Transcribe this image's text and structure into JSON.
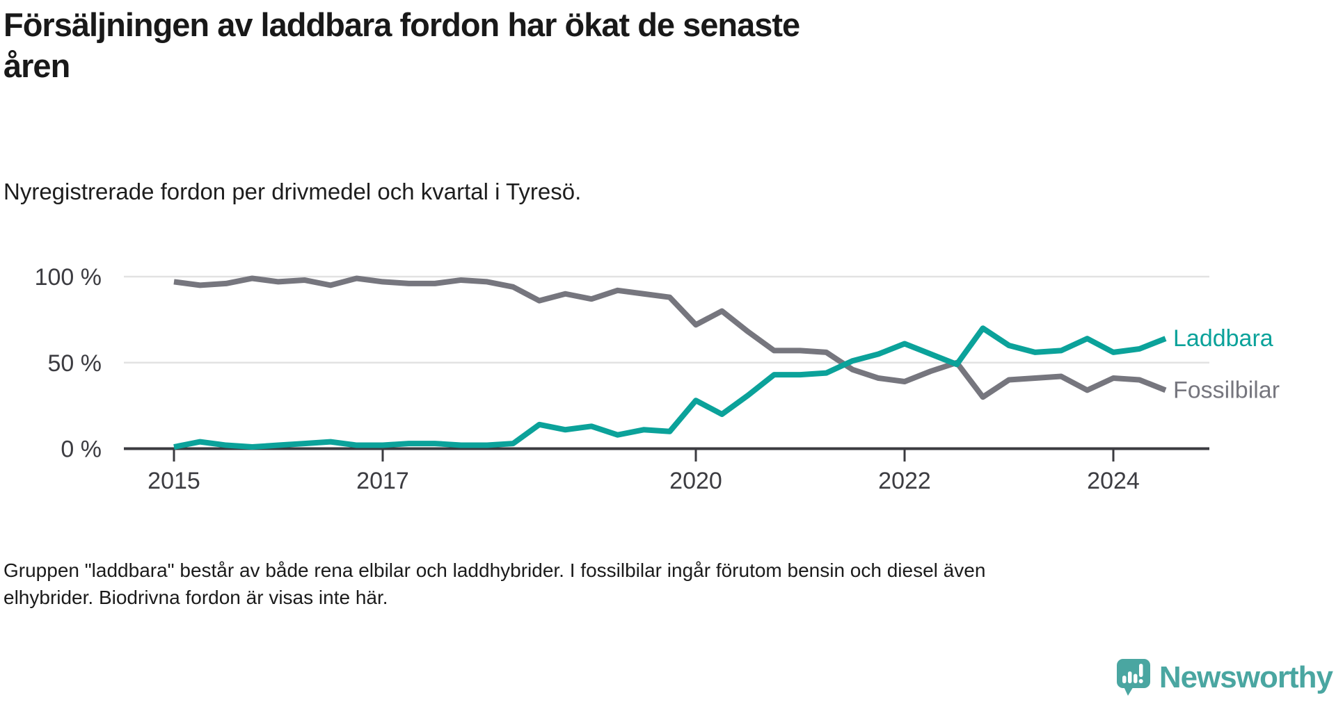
{
  "header": {
    "title_lines": [
      "Försäljningen av laddbara fordon har ökat de senaste",
      "åren"
    ],
    "subtitle": "Nyregistrerade fordon per drivmedel och kvartal i Tyresö."
  },
  "chart_data": {
    "type": "line",
    "unit": "percent",
    "grid": "horizontal",
    "legend_position": "end-of-line",
    "ylim": [
      0,
      100
    ],
    "y_ticks": [
      {
        "value": 0,
        "label": "0 %"
      },
      {
        "value": 50,
        "label": "50 %"
      },
      {
        "value": 100,
        "label": "100 %"
      }
    ],
    "x_label_years": [
      2015,
      2017,
      2020,
      2022,
      2024
    ],
    "quarters": [
      "2015-Q1",
      "2015-Q2",
      "2015-Q3",
      "2015-Q4",
      "2016-Q1",
      "2016-Q2",
      "2016-Q3",
      "2016-Q4",
      "2017-Q1",
      "2017-Q2",
      "2017-Q3",
      "2017-Q4",
      "2018-Q1",
      "2018-Q2",
      "2018-Q3",
      "2018-Q4",
      "2019-Q1",
      "2019-Q2",
      "2019-Q3",
      "2019-Q4",
      "2020-Q1",
      "2020-Q2",
      "2020-Q3",
      "2020-Q4",
      "2021-Q1",
      "2021-Q2",
      "2021-Q3",
      "2021-Q4",
      "2022-Q1",
      "2022-Q2",
      "2022-Q3",
      "2022-Q4",
      "2023-Q1",
      "2023-Q2",
      "2023-Q3",
      "2023-Q4",
      "2024-Q1",
      "2024-Q2",
      "2024-Q3"
    ],
    "series": [
      {
        "name": "Laddbara",
        "color": "#0ba29a",
        "values": [
          1,
          4,
          2,
          1,
          2,
          3,
          4,
          2,
          2,
          3,
          3,
          2,
          2,
          3,
          14,
          11,
          13,
          8,
          11,
          10,
          28,
          20,
          31,
          43,
          43,
          44,
          51,
          55,
          61,
          55,
          49,
          70,
          60,
          56,
          57,
          64,
          56,
          58,
          64
        ]
      },
      {
        "name": "Fossilbilar",
        "color": "#76767e",
        "values": [
          97,
          95,
          96,
          99,
          97,
          98,
          95,
          99,
          97,
          96,
          96,
          98,
          97,
          94,
          86,
          90,
          87,
          92,
          90,
          88,
          72,
          80,
          68,
          57,
          57,
          56,
          46,
          41,
          39,
          45,
          50,
          30,
          40,
          41,
          42,
          34,
          41,
          40,
          34
        ]
      }
    ]
  },
  "footer": {
    "lines": [
      "Gruppen \"laddbara\" består av både rena elbilar och laddhybrider. I fossilbilar ingår förutom bensin och diesel även",
      "elhybrider. Biodrivna fordon är visas inte här."
    ]
  },
  "branding": {
    "name": "Newsworthy",
    "color": "#4aa6a1"
  }
}
